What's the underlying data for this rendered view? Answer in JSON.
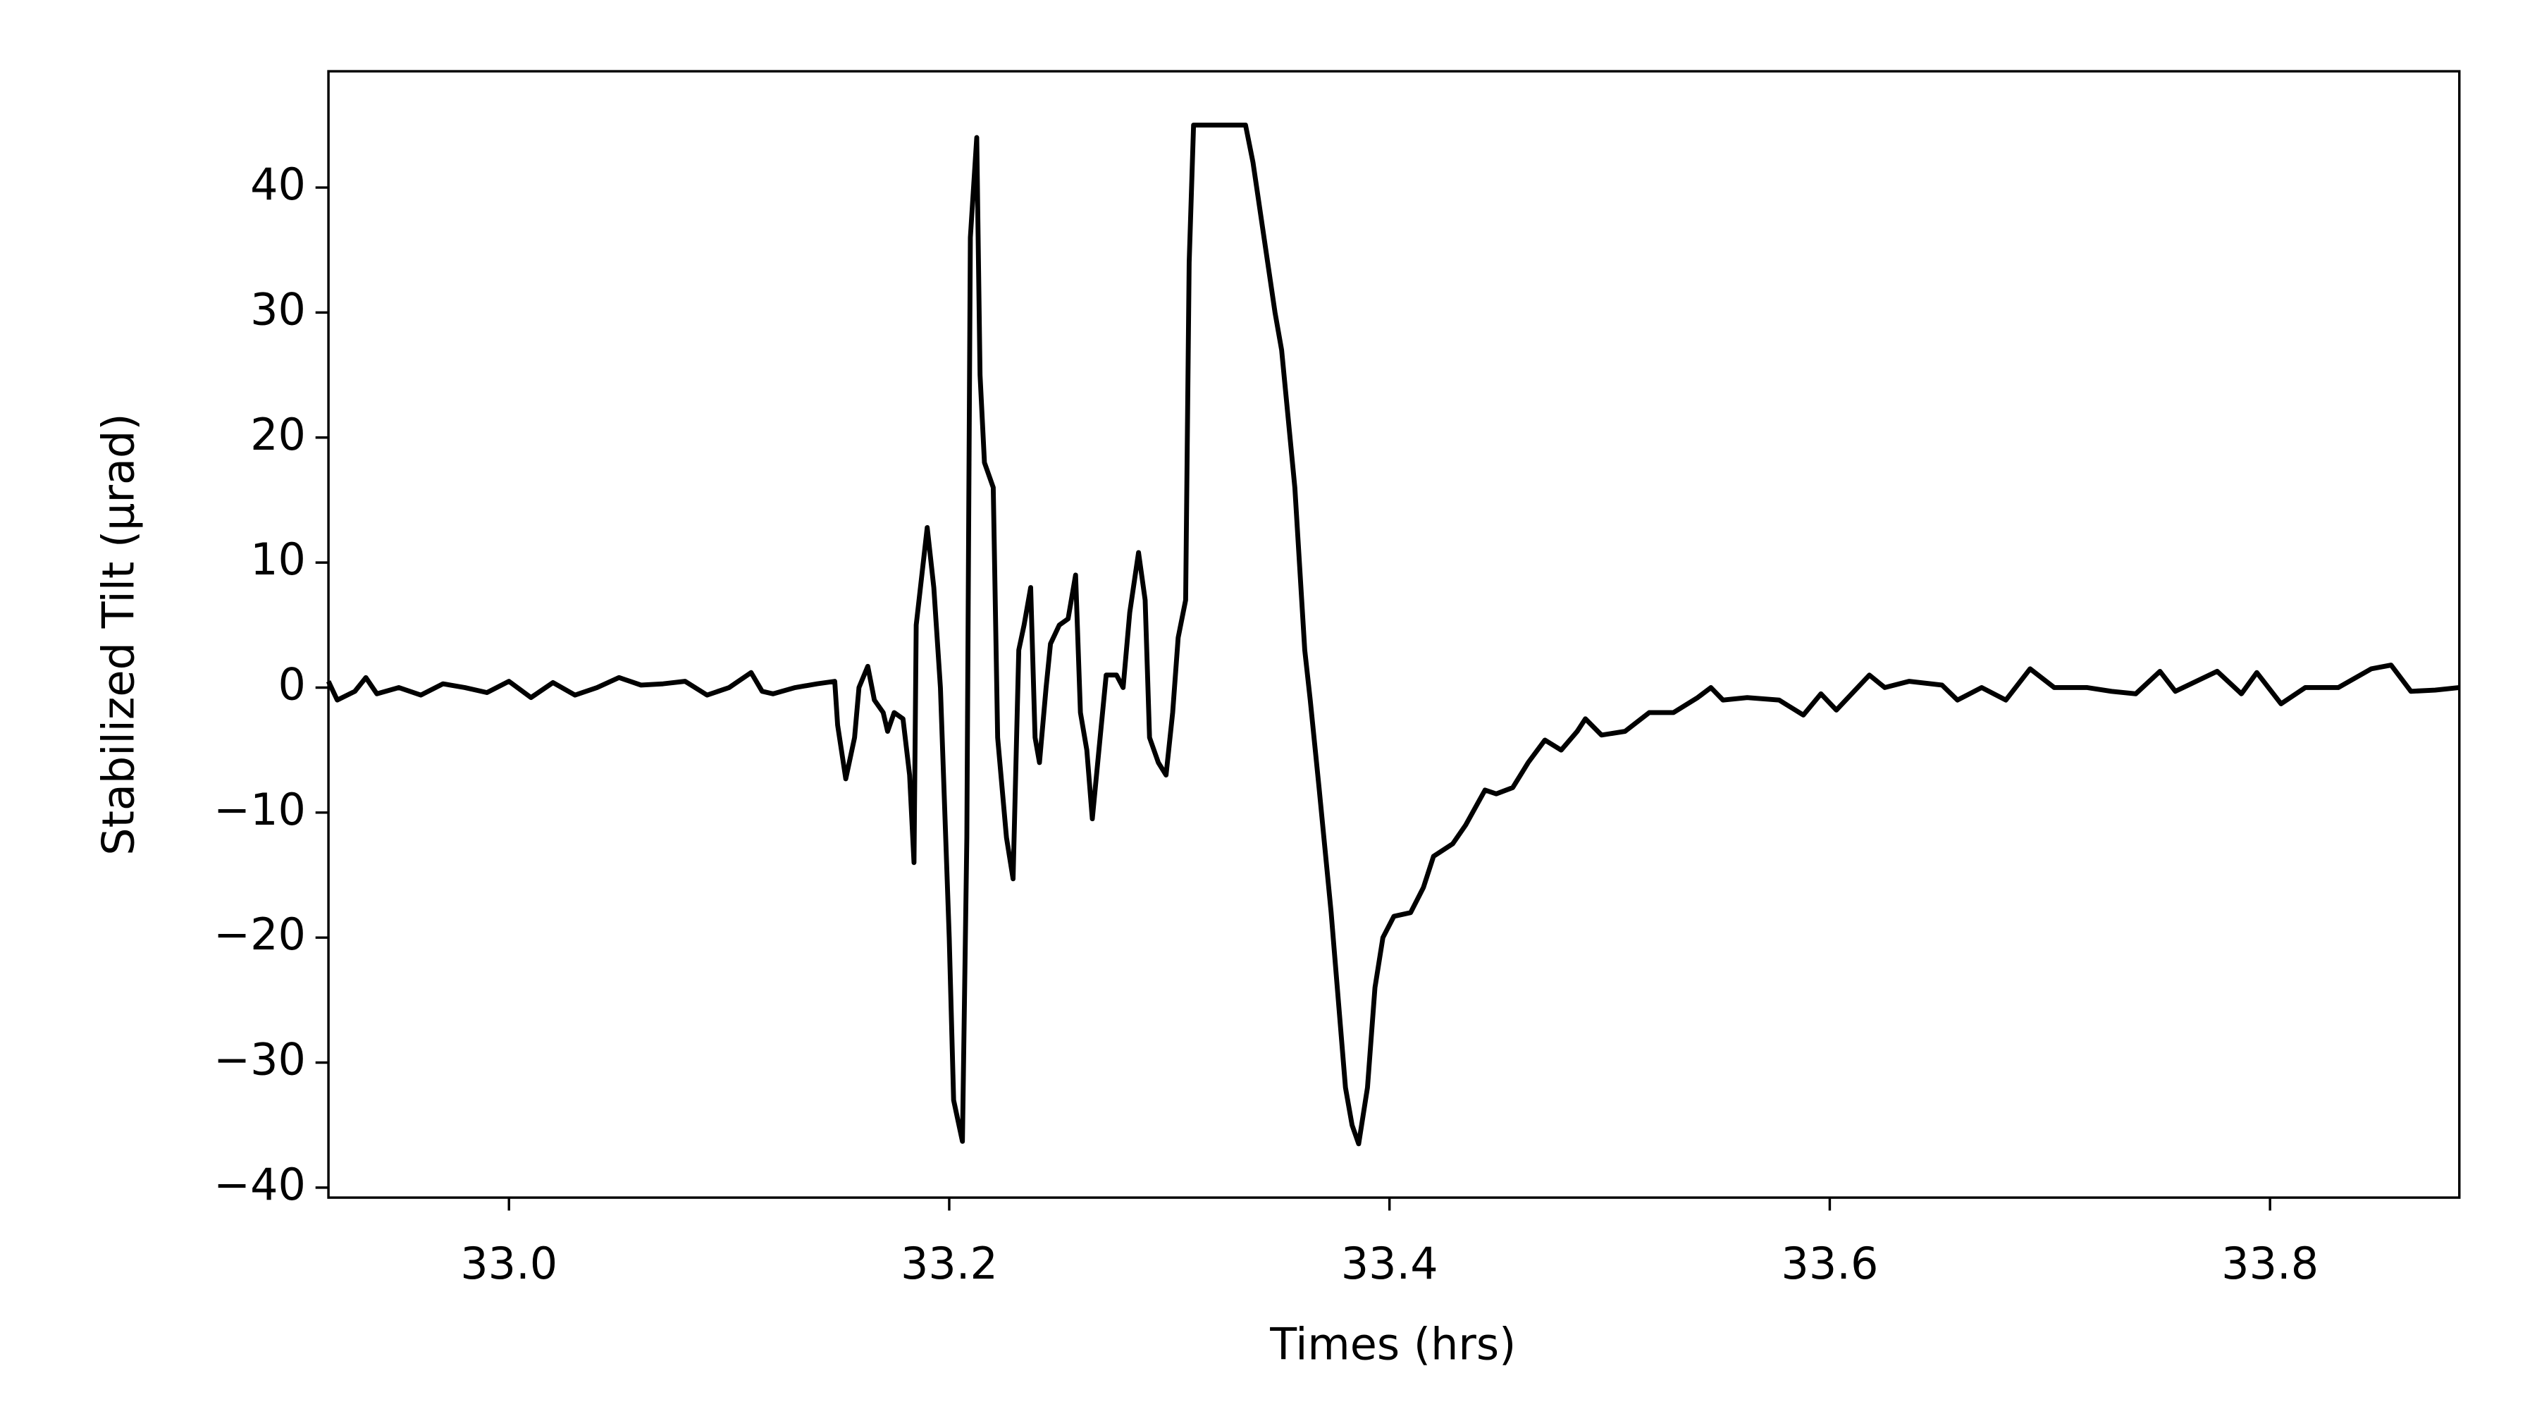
{
  "chart_data": {
    "type": "line",
    "x_label": "Times (hrs)",
    "y_label": "Stabilized Tilt (μrad)",
    "color": "#000000",
    "xlim": [
      32.918,
      33.886
    ],
    "ylim": [
      -40.8,
      49.3
    ],
    "xticks": [
      {
        "value": 33,
        "label": "33.0"
      },
      33.2,
      33.4,
      33.6,
      33.8
    ],
    "yticks": [
      {
        "value": -40,
        "label": "−40"
      },
      {
        "value": -30,
        "label": "−30"
      },
      {
        "value": -20,
        "label": "−20"
      },
      {
        "value": -10,
        "label": "−10"
      },
      0,
      10,
      20,
      30,
      40
    ],
    "x": [
      32.918,
      32.922,
      32.93,
      32.935,
      32.94,
      32.95,
      32.96,
      32.97,
      32.98,
      32.99,
      33.0,
      33.01,
      33.02,
      33.03,
      33.04,
      33.05,
      33.06,
      33.07,
      33.08,
      33.09,
      33.1,
      33.11,
      33.115,
      33.12,
      33.13,
      33.14,
      33.148,
      33.1493,
      33.153,
      33.157,
      33.159,
      33.163,
      33.166,
      33.17,
      33.172,
      33.175,
      33.179,
      33.182,
      33.184,
      33.185,
      33.19,
      33.193,
      33.196,
      33.2,
      33.202,
      33.206,
      33.208,
      33.2096,
      33.2125,
      33.214,
      33.216,
      33.22,
      33.222,
      33.226,
      33.229,
      33.2316,
      33.234,
      33.237,
      33.239,
      33.241,
      33.244,
      33.246,
      33.25,
      33.254,
      33.2574,
      33.2596,
      33.2625,
      33.265,
      33.268,
      33.2713,
      33.276,
      33.279,
      33.282,
      33.286,
      33.289,
      33.291,
      33.295,
      33.2985,
      33.3015,
      33.304,
      33.3074,
      33.309,
      33.311,
      33.3346,
      33.338,
      33.348,
      33.351,
      33.357,
      33.3615,
      33.364,
      33.368,
      33.3735,
      33.38,
      33.383,
      33.386,
      33.39,
      33.3934,
      33.397,
      33.402,
      33.4096,
      33.4154,
      33.42,
      33.4287,
      33.4346,
      33.4434,
      33.4485,
      33.456,
      33.463,
      33.4706,
      33.478,
      33.4853,
      33.489,
      33.4963,
      33.507,
      33.518,
      33.529,
      33.54,
      33.546,
      33.5515,
      33.5625,
      33.577,
      33.588,
      33.596,
      33.603,
      33.618,
      33.625,
      33.636,
      33.651,
      33.658,
      33.669,
      33.68,
      33.691,
      33.702,
      33.717,
      33.728,
      33.739,
      33.75,
      33.757,
      33.776,
      33.787,
      33.794,
      33.805,
      33.816,
      33.831,
      33.846,
      33.855,
      33.864,
      33.875,
      33.886
    ],
    "values": [
      0.5,
      -1,
      -0.3,
      0.8,
      -0.5,
      0,
      -0.6,
      0.3,
      0,
      -0.4,
      0.5,
      -0.8,
      0.4,
      -0.6,
      0,
      0.8,
      0.2,
      0.3,
      0.5,
      -0.6,
      0,
      1.2,
      -0.3,
      -0.5,
      0,
      0.3,
      0.5,
      -3,
      -7.3,
      -4,
      0,
      1.7,
      -1,
      -2,
      -3.5,
      -2,
      -2.5,
      -7,
      -14,
      5,
      12.8,
      8,
      0,
      -20,
      -33,
      -36.3,
      -12,
      36,
      44,
      25,
      18,
      16,
      -4,
      -12,
      -15.3,
      3,
      5,
      8,
      -4,
      -6,
      0,
      3.5,
      5,
      5.5,
      9,
      -2,
      -5,
      -10.5,
      -5,
      1,
      1,
      0,
      6,
      10.8,
      7,
      -4,
      -6,
      -7,
      -2,
      4,
      7,
      34,
      45,
      45,
      42,
      30,
      27,
      16,
      3,
      -1,
      -8,
      -18,
      -32,
      -35,
      -36.5,
      -32,
      -24,
      -20,
      -18.3,
      -18,
      -16,
      -13.5,
      -12.5,
      -11,
      -8.2,
      -8.5,
      -8,
      -6,
      -4.2,
      -5,
      -3.5,
      -2.5,
      -3.8,
      -3.5,
      -2,
      -2,
      -0.8,
      0,
      -1,
      -0.8,
      -1,
      -2.2,
      -0.5,
      -1.8,
      1,
      0,
      0.5,
      0.2,
      -1,
      0,
      -1,
      1.5,
      0,
      0,
      -0.3,
      -0.5,
      1.3,
      -0.3,
      1.3,
      -0.5,
      1.2,
      -1.3,
      0,
      0,
      1.5,
      1.8,
      -0.3,
      -0.2,
      0
    ]
  }
}
